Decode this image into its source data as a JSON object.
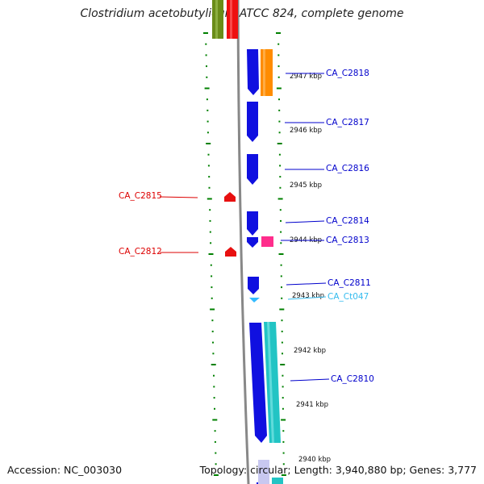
{
  "title": "Clostridium acetobutylicum ATCC 824, complete genome",
  "footer": {
    "accession": "Accession: NC_003030",
    "info": "Topology: circular; Length: 3,940,880 bp; Genes: 3,777"
  },
  "colors": {
    "forward_cds": "#1010e0",
    "reverse_marker": "#e81010",
    "orange_feature": "#ff8c00",
    "magenta_feature": "#ff2d8c",
    "cyan_feature": "#22c4c4",
    "trna_feature": "#33bbff",
    "green_feature": "#6a8c18",
    "tick_color": "#008000",
    "backbone": "#888888"
  },
  "kbp_labels": [
    "2947 kbp",
    "2946 kbp",
    "2945 kbp",
    "2944 kbp",
    "2943 kbp",
    "2942 kbp",
    "2941 kbp",
    "2940 kbp"
  ],
  "genes_right": [
    {
      "id": "CA_C2818",
      "color": "#0000cc"
    },
    {
      "id": "CA_C2817",
      "color": "#0000cc"
    },
    {
      "id": "CA_C2816",
      "color": "#0000cc"
    },
    {
      "id": "CA_C2814",
      "color": "#0000cc"
    },
    {
      "id": "CA_C2813",
      "color": "#0000cc"
    },
    {
      "id": "CA_C2811",
      "color": "#0000cc"
    },
    {
      "id": "CA_Ct047",
      "color": "#33bbee"
    },
    {
      "id": "CA_C2810",
      "color": "#0000cc"
    }
  ],
  "genes_left": [
    {
      "id": "CA_C2815",
      "color": "#dd0000"
    },
    {
      "id": "CA_C2812",
      "color": "#dd0000"
    }
  ]
}
